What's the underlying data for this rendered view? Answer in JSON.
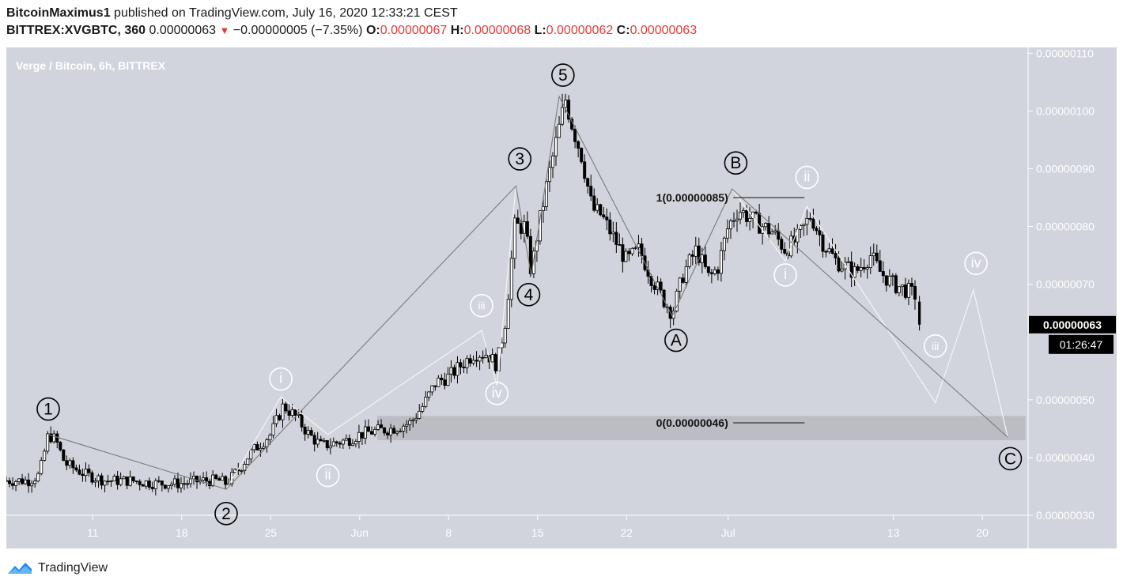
{
  "header": {
    "publisher": "BitcoinMaximus1",
    "published_text": "published on TradingView.com, July 16, 2020 12:33:21 CEST",
    "symbol": "BITTREX:XVGBTC, 360",
    "last": "0.00000063",
    "arrow": "▼",
    "change": "−0.00000005 (−7.35%)",
    "o_label": "O:",
    "o_value": "0.00000067",
    "h_label": "H:",
    "h_value": "0.00000068",
    "l_label": "L:",
    "l_value": "0.00000062",
    "c_label": "C:",
    "c_value": "0.00000063"
  },
  "footer": {
    "brand": "TradingView",
    "logo_icon": "tradingview-logo-icon"
  },
  "colors": {
    "plot_bg": "#d1d4dc",
    "candle": "#000000",
    "wave_line": "#8a8a8a",
    "white_line": "#f4f4f4",
    "zone": "#b8b9bf",
    "down_badge": "#000000"
  },
  "chart_data": {
    "type": "candlestick",
    "title": "Verge / Bitcoin, 6h, BITTREX",
    "ylim": [
      3e-07,
      1.11e-06
    ],
    "y_ticks": [
      "0.00000110",
      "0.00000100",
      "0.00000090",
      "0.00000080",
      "0.00000070",
      "0.00000050",
      "0.00000040",
      "0.00000030"
    ],
    "y_tick_values": [
      110,
      100,
      90,
      80,
      70,
      50,
      40,
      30
    ],
    "x_ticks": [
      "11",
      "18",
      "25",
      "Jun",
      "8",
      "15",
      "22",
      "Jul",
      "13",
      "20"
    ],
    "x_tick_days": [
      10,
      17,
      24,
      31,
      38,
      45,
      52,
      60,
      73,
      80
    ],
    "x_domain_days": [
      3.2,
      83.6
    ],
    "price_scale_unit": 1e-08,
    "last_price_label": "0.00000063",
    "countdown_label": "01:26:47",
    "price_path": [
      [
        3.2,
        36
      ],
      [
        5.0,
        36
      ],
      [
        5.8,
        37
      ],
      [
        6.5,
        44
      ],
      [
        7.1,
        43
      ],
      [
        7.8,
        39
      ],
      [
        9.5,
        37
      ],
      [
        11,
        36
      ],
      [
        13,
        36
      ],
      [
        15,
        35.5
      ],
      [
        17,
        35.5
      ],
      [
        18.5,
        36
      ],
      [
        20,
        36
      ],
      [
        20.5,
        35.5
      ],
      [
        21.5,
        38
      ],
      [
        22.5,
        41
      ],
      [
        24,
        44
      ],
      [
        25,
        49
      ],
      [
        26,
        47
      ],
      [
        27,
        44
      ],
      [
        28,
        42
      ],
      [
        30,
        43
      ],
      [
        31,
        44
      ],
      [
        32,
        44.5
      ],
      [
        33.5,
        45
      ],
      [
        35,
        46
      ],
      [
        36,
        49
      ],
      [
        37,
        53
      ],
      [
        38,
        54
      ],
      [
        39,
        56
      ],
      [
        40,
        58
      ],
      [
        41,
        58
      ],
      [
        41.8,
        56
      ],
      [
        42.5,
        64
      ],
      [
        43.2,
        80
      ],
      [
        44.0,
        80
      ],
      [
        44.5,
        72
      ],
      [
        45.0,
        79
      ],
      [
        45.8,
        88
      ],
      [
        46.6,
        96
      ],
      [
        47.2,
        102
      ],
      [
        47.8,
        97
      ],
      [
        48.5,
        92
      ],
      [
        49.3,
        83
      ],
      [
        50.0,
        82
      ],
      [
        51,
        78
      ],
      [
        52,
        74
      ],
      [
        53,
        76
      ],
      [
        54,
        71
      ],
      [
        55,
        67
      ],
      [
        55.6,
        65
      ],
      [
        56.5,
        72
      ],
      [
        57.5,
        76
      ],
      [
        58.5,
        71
      ],
      [
        59.2,
        73
      ],
      [
        60.0,
        80
      ],
      [
        60.8,
        83
      ],
      [
        62,
        81
      ],
      [
        63.5,
        79
      ],
      [
        64.5,
        76
      ],
      [
        65.5,
        78
      ],
      [
        66.5,
        82
      ],
      [
        67.5,
        77
      ],
      [
        68.5,
        74
      ],
      [
        70,
        72
      ],
      [
        71.2,
        75
      ],
      [
        72,
        72
      ],
      [
        73,
        70
      ],
      [
        74,
        69
      ],
      [
        74.8,
        68
      ]
    ],
    "markers": [
      {
        "label": "1",
        "style": "dark",
        "day": 6.5,
        "price": 48.4
      },
      {
        "label": "2",
        "style": "dark",
        "day": 20.5,
        "price": 30.3
      },
      {
        "label": "3",
        "style": "dark",
        "day": 43.6,
        "price": 91.7
      },
      {
        "label": "4",
        "style": "dark",
        "day": 44.3,
        "price": 68.2
      },
      {
        "label": "5",
        "style": "dark",
        "day": 47.0,
        "price": 106.2
      },
      {
        "label": "A",
        "style": "dark",
        "day": 55.9,
        "price": 60.3
      },
      {
        "label": "B",
        "style": "dark",
        "day": 60.6,
        "price": 91.0
      },
      {
        "label": "C",
        "style": "dark",
        "day": 82.2,
        "price": 39.8
      },
      {
        "label": "i",
        "style": "white",
        "day": 24.8,
        "price": 53.6
      },
      {
        "label": "ii",
        "style": "white",
        "day": 28.5,
        "price": 36.9
      },
      {
        "label": "iii",
        "style": "white",
        "day": 40.6,
        "price": 66.3
      },
      {
        "label": "iv",
        "style": "white",
        "day": 41.8,
        "price": 51.1
      },
      {
        "label": "i",
        "style": "white",
        "day": 64.5,
        "price": 71.6
      },
      {
        "label": "ii",
        "style": "white",
        "day": 66.2,
        "price": 88.5
      },
      {
        "label": "iii",
        "style": "white",
        "day": 76.3,
        "price": 59.3
      },
      {
        "label": "iv",
        "style": "white",
        "day": 79.5,
        "price": 73.6
      }
    ],
    "impulse_line": [
      [
        6.5,
        44
      ],
      [
        20.5,
        34.5
      ],
      [
        43.3,
        87
      ],
      [
        44.5,
        71.5
      ],
      [
        46.7,
        102.5
      ],
      [
        55.6,
        64.5
      ],
      [
        60.3,
        86.5
      ],
      [
        82.0,
        43.5
      ]
    ],
    "subwave_line_1": [
      [
        20.5,
        34.5
      ],
      [
        24.8,
        50.5
      ],
      [
        28.5,
        44
      ],
      [
        40.6,
        62
      ],
      [
        41.8,
        52.5
      ],
      [
        43.3,
        87
      ]
    ],
    "subwave_line_2": [
      [
        60.3,
        86.5
      ],
      [
        64.5,
        74
      ],
      [
        66.2,
        83.5
      ],
      [
        76.3,
        49.5
      ],
      [
        79.3,
        69
      ],
      [
        82.0,
        43.5
      ]
    ],
    "fib_levels": [
      {
        "label": "1(0.00000085)",
        "price": 85,
        "line_start_day": 60.4,
        "line_end_day": 66.0,
        "label_right_day": 60.0
      },
      {
        "label": "0(0.00000046)",
        "price": 46,
        "line_start_day": 60.4,
        "line_end_day": 66.0,
        "label_right_day": 60.0
      }
    ],
    "zone": {
      "start_day": 32.4,
      "end_day": 83.4,
      "price_low": 43,
      "price_high": 47.2
    }
  }
}
